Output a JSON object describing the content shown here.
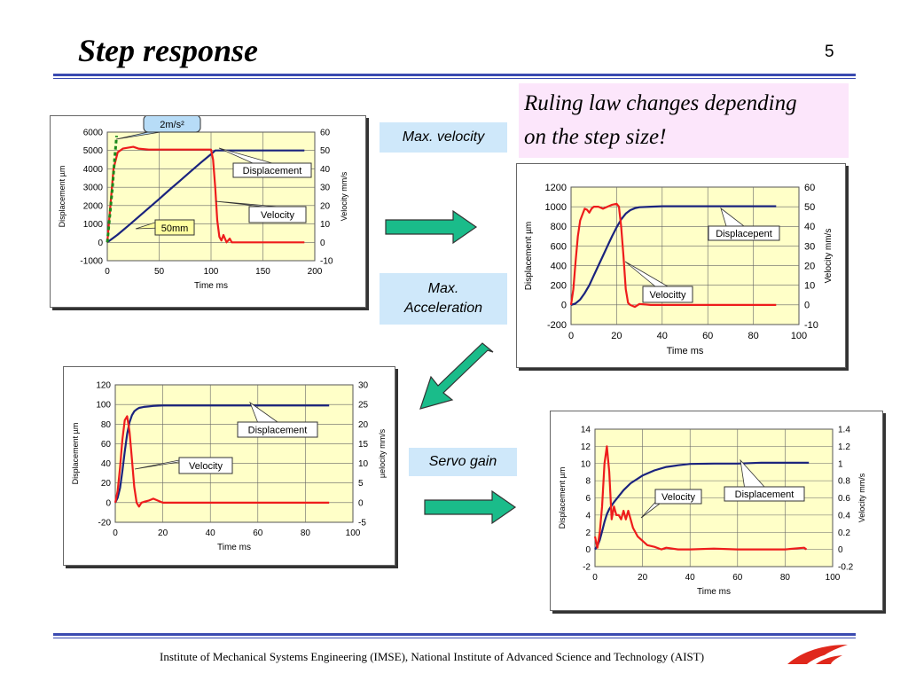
{
  "slide": {
    "title": "Step response",
    "page_number": "5",
    "note_lines": [
      "Ruling law changes depending",
      "on the step size!"
    ],
    "label_max_velocity": "Max. velocity",
    "label_max_accel_line1": "Max.",
    "label_max_accel_line2": "Acceleration",
    "label_servo_gain": "Servo gain",
    "footer": "Institute of  Mechanical Systems Engineering (IMSE), National Institute of Advanced Science and Technology (AIST)",
    "colors": {
      "displacement": "#1a237e",
      "velocity": "#ee1c1c",
      "plot_bg": "#ffffc8",
      "label_bg": "#cfe8fa",
      "note_bg": "#fce6fb",
      "arrow": "#1abc8a",
      "rule": "#3a4ab0",
      "callout_2ms": "#b7dcf7",
      "callout_50mm": "#ffffa0",
      "accel_line": "#1b8a1b"
    }
  },
  "chart_data": [
    {
      "type": "line",
      "xlabel": "Time  ms",
      "ylabel": "Displacement  µm",
      "y2label": "Velocity  mm/s",
      "xlim": [
        0,
        200
      ],
      "xticks": [
        0,
        50,
        100,
        150,
        200
      ],
      "ylim": [
        -1000,
        6000
      ],
      "yticks": [
        -1000,
        0,
        1000,
        2000,
        3000,
        4000,
        5000,
        6000
      ],
      "y2lim": [
        -10,
        60
      ],
      "y2ticks": [
        -10,
        0,
        10,
        20,
        30,
        40,
        50,
        60
      ],
      "grid": true,
      "series": [
        {
          "name": "Displacement",
          "axis": "left",
          "x": [
            0,
            10,
            20,
            30,
            40,
            50,
            60,
            70,
            80,
            90,
            100,
            104,
            110,
            120,
            140,
            160,
            180,
            190
          ],
          "values": [
            0,
            420,
            890,
            1380,
            1870,
            2360,
            2860,
            3350,
            3840,
            4330,
            4800,
            5000,
            5000,
            5000,
            5000,
            5000,
            5000,
            5000
          ]
        },
        {
          "name": "Velocity",
          "axis": "right",
          "x": [
            0,
            3,
            6,
            10,
            15,
            20,
            25,
            30,
            40,
            60,
            80,
            100,
            102,
            104,
            106,
            108,
            110,
            112,
            115,
            118,
            120,
            125,
            130,
            140,
            160,
            180,
            190
          ],
          "values": [
            0,
            20,
            40,
            49,
            51,
            51.5,
            52,
            51,
            50.5,
            50.5,
            50.5,
            50.5,
            45,
            30,
            12,
            3,
            1,
            4,
            0,
            2,
            0,
            0,
            0,
            0,
            0,
            0,
            0
          ]
        }
      ],
      "annotations": [
        "Displacement",
        "Velocity",
        "2m/s²",
        "50mm"
      ]
    },
    {
      "type": "line",
      "xlabel": "Time  ms",
      "ylabel": "Displacement  µm",
      "y2label": "Velocity  mm/s",
      "xlim": [
        0,
        100
      ],
      "xticks": [
        0,
        20,
        40,
        60,
        80,
        100
      ],
      "ylim": [
        -200,
        1200
      ],
      "yticks": [
        -200,
        0,
        200,
        400,
        600,
        800,
        1000,
        1200
      ],
      "y2lim": [
        -10,
        60
      ],
      "y2ticks": [
        -10,
        0,
        10,
        20,
        30,
        40,
        50,
        60
      ],
      "grid": true,
      "series": [
        {
          "name": "Displacement",
          "axis": "left",
          "x": [
            0,
            2,
            4,
            6,
            8,
            10,
            12,
            14,
            16,
            18,
            20,
            22,
            24,
            26,
            28,
            30,
            35,
            40,
            50,
            60,
            70,
            80,
            90
          ],
          "values": [
            0,
            15,
            55,
            120,
            200,
            300,
            400,
            500,
            600,
            700,
            790,
            870,
            930,
            965,
            985,
            995,
            1000,
            1005,
            1005,
            1005,
            1005,
            1005,
            1005
          ]
        },
        {
          "name": "Velocity",
          "axis": "right",
          "x": [
            0,
            1,
            2,
            3,
            4,
            5,
            6,
            7,
            8,
            9,
            10,
            12,
            14,
            16,
            18,
            20,
            21,
            22,
            23,
            24,
            25,
            26,
            28,
            30,
            35,
            40,
            50,
            60,
            70,
            80,
            90
          ],
          "values": [
            0,
            8,
            22,
            35,
            43,
            46,
            49,
            48.5,
            47,
            49,
            50,
            50,
            49,
            50,
            51,
            51.5,
            50,
            40,
            25,
            8,
            1,
            0,
            -1,
            0.5,
            0,
            0,
            0,
            0,
            0,
            0,
            0
          ]
        }
      ],
      "annotations": [
        "Displacepent",
        "Velocitty"
      ]
    },
    {
      "type": "line",
      "xlabel": "Time  ms",
      "ylabel": "Displacement  µm",
      "y2label": "µelocity  mm/s",
      "xlim": [
        0,
        100
      ],
      "xticks": [
        0,
        20,
        40,
        60,
        80,
        100
      ],
      "ylim": [
        -20,
        120
      ],
      "yticks": [
        -20,
        0,
        20,
        40,
        60,
        80,
        100,
        120
      ],
      "y2lim": [
        -5,
        30
      ],
      "y2ticks": [
        -5,
        0,
        5,
        10,
        15,
        20,
        25,
        30
      ],
      "grid": true,
      "series": [
        {
          "name": "Displacement",
          "axis": "left",
          "x": [
            0,
            1,
            2,
            3,
            4,
            5,
            6,
            7,
            8,
            9,
            10,
            12,
            14,
            16,
            20,
            30,
            40,
            50,
            60,
            70,
            80,
            90
          ],
          "values": [
            0,
            5,
            15,
            32,
            52,
            70,
            82,
            89,
            93,
            95,
            96.5,
            97.5,
            98,
            98.5,
            99,
            99,
            99,
            99,
            99,
            99,
            99,
            99
          ]
        },
        {
          "name": "Velocity",
          "axis": "right",
          "x": [
            0,
            1,
            2,
            3,
            4,
            5,
            6,
            7,
            8,
            9,
            10,
            11,
            12,
            14,
            16,
            18,
            20,
            25,
            30,
            40,
            50,
            60,
            70,
            80,
            90
          ],
          "values": [
            0,
            3,
            9,
            16,
            21,
            22,
            18,
            11,
            4,
            0,
            -1,
            0,
            0.2,
            0.5,
            1,
            0.5,
            0,
            0,
            0,
            0,
            0,
            0,
            0,
            0,
            0
          ]
        }
      ],
      "annotations": [
        "Displacement",
        "Velocity"
      ]
    },
    {
      "type": "line",
      "xlabel": "Time  ms",
      "ylabel": "Displacement  µm",
      "y2label": "Velocity  mm/s",
      "xlim": [
        0,
        100
      ],
      "xticks": [
        0,
        20,
        40,
        60,
        80,
        100
      ],
      "ylim": [
        -2,
        14
      ],
      "yticks": [
        -2,
        0,
        2,
        4,
        6,
        8,
        10,
        12,
        14
      ],
      "y2lim": [
        -0.2,
        1.4
      ],
      "y2ticks": [
        -0.2,
        0,
        0.2,
        0.4,
        0.6,
        0.8,
        1,
        1.2,
        1.4
      ],
      "grid": true,
      "series": [
        {
          "name": "Displacement",
          "axis": "left",
          "x": [
            0,
            1,
            2,
            3,
            4,
            5,
            6,
            8,
            10,
            12,
            15,
            20,
            25,
            30,
            35,
            40,
            50,
            60,
            70,
            80,
            90
          ],
          "values": [
            0,
            0.4,
            1.1,
            2.1,
            3.2,
            4.1,
            4.7,
            5.5,
            6.2,
            6.9,
            7.7,
            8.6,
            9.2,
            9.6,
            9.8,
            9.95,
            10,
            10,
            10.1,
            10.1,
            10.1
          ]
        },
        {
          "name": "Velocity",
          "axis": "right",
          "x": [
            0,
            1,
            2,
            3,
            4,
            5,
            6,
            7,
            8,
            9,
            10,
            11,
            12,
            13,
            14,
            15,
            16,
            18,
            20,
            22,
            25,
            28,
            30,
            35,
            40,
            50,
            60,
            70,
            80,
            88,
            89
          ],
          "values": [
            0.15,
            0.02,
            0.2,
            0.5,
            1,
            1.2,
            0.9,
            0.35,
            0.5,
            0.4,
            0.4,
            0.35,
            0.45,
            0.35,
            0.45,
            0.35,
            0.25,
            0.15,
            0.1,
            0.05,
            0.03,
            0,
            0.02,
            0,
            0,
            0.01,
            0,
            0,
            0,
            0.02,
            0
          ]
        }
      ],
      "annotations": [
        "Velocity",
        "Displacement"
      ]
    }
  ]
}
